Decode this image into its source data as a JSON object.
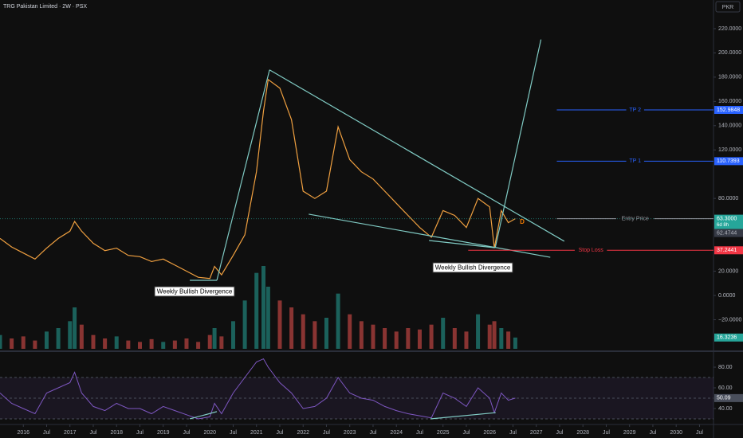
{
  "chart_data": {
    "type": "line",
    "title": "TRG Pakistan Limited · 2W · PSX",
    "currency": "PKR",
    "x": [
      2015.5,
      2015.75,
      2016,
      2016.25,
      2016.5,
      2016.75,
      2017,
      2017.1,
      2017.25,
      2017.5,
      2017.75,
      2018,
      2018.25,
      2018.5,
      2018.75,
      2019,
      2019.25,
      2019.5,
      2019.75,
      2020,
      2020.1,
      2020.25,
      2020.5,
      2020.75,
      2021,
      2021.15,
      2021.25,
      2021.5,
      2021.75,
      2022,
      2022.25,
      2022.5,
      2022.75,
      2023,
      2023.25,
      2023.5,
      2023.75,
      2024,
      2024.25,
      2024.5,
      2024.75,
      2025,
      2025.25,
      2025.5,
      2025.75,
      2026,
      2026.1,
      2026.25,
      2026.4,
      2026.55
    ],
    "xlim": [
      2015.5,
      2030.8
    ],
    "xticks": [
      2016,
      {
        "value": 2016.5,
        "label": "Jul"
      },
      2017,
      {
        "value": 2017.5,
        "label": "Jul"
      },
      2018,
      {
        "value": 2018.5,
        "label": "Jul"
      },
      2019,
      {
        "value": 2019.5,
        "label": "Jul"
      },
      2020,
      {
        "value": 2020.5,
        "label": "Jul"
      },
      2021,
      {
        "value": 2021.5,
        "label": "Jul"
      },
      2022,
      {
        "value": 2022.5,
        "label": "Jul"
      },
      2023,
      {
        "value": 2023.5,
        "label": "Jul"
      },
      2024,
      {
        "value": 2024.5,
        "label": "Jul"
      },
      2025,
      {
        "value": 2025.5,
        "label": "Jul"
      },
      2026,
      {
        "value": 2026.5,
        "label": "Jul"
      },
      2027,
      {
        "value": 2027.5,
        "label": "Jul"
      },
      2028,
      {
        "value": 2028.5,
        "label": "Jul"
      },
      2029,
      {
        "value": 2029.5,
        "label": "Jul"
      },
      2030,
      {
        "value": 2030.5,
        "label": "Jul"
      }
    ],
    "ylim": [
      -45.3,
      243.6
    ],
    "yticks": [
      {
        "value": 220,
        "label": "220.0000"
      },
      {
        "value": 200,
        "label": "200.0000"
      },
      {
        "value": 180,
        "label": "180.0000"
      },
      {
        "value": 160,
        "label": "160.0000"
      },
      {
        "value": 140,
        "label": "140.0000"
      },
      {
        "value": 120,
        "label": "120.0000"
      },
      {
        "value": 80,
        "label": "80.0000"
      },
      {
        "value": 20,
        "label": "20.0000"
      },
      {
        "value": 0,
        "label": "0.0000"
      },
      {
        "value": -20,
        "label": "−20.0000"
      }
    ],
    "volume_ylim": [
      0,
      150
    ],
    "rsi_ylim": [
      26.9,
      90.8
    ],
    "rsi_yticks": [
      {
        "value": 80,
        "label": "80.00"
      },
      {
        "value": 60,
        "label": "60.00"
      },
      {
        "value": 40,
        "label": "40.00"
      }
    ],
    "rsi_bands": [
      30,
      50,
      70
    ],
    "up_color": "#26a69a",
    "down_color": "#ef5350",
    "series": [
      {
        "color": "#f0a040",
        "values": [
          47,
          40,
          35,
          30,
          39,
          47,
          53,
          61,
          53,
          43,
          37,
          39,
          33,
          32,
          28,
          30,
          25,
          20,
          15,
          14,
          24,
          17,
          33,
          50,
          102,
          152,
          178,
          171,
          145,
          86,
          80,
          86,
          139,
          112,
          102,
          96,
          86,
          76,
          66,
          56,
          48,
          70,
          66,
          56,
          80,
          73,
          39,
          70,
          60,
          63.3
        ]
      },
      {
        "axis": "volume",
        "color": "#26a69a",
        "values": [
          20,
          15,
          18,
          12,
          25,
          30,
          40,
          60,
          35,
          20,
          15,
          18,
          12,
          10,
          14,
          10,
          12,
          15,
          10,
          20,
          30,
          18,
          40,
          70,
          110,
          120,
          90,
          70,
          60,
          50,
          40,
          45,
          80,
          50,
          40,
          35,
          30,
          25,
          30,
          28,
          35,
          45,
          30,
          25,
          50,
          35,
          40,
          30,
          25,
          16.3236
        ]
      },
      {
        "axis": "rsi",
        "color": "#7e57c2",
        "values": [
          55,
          45,
          40,
          35,
          55,
          60,
          65,
          75,
          55,
          42,
          38,
          45,
          40,
          40,
          35,
          42,
          38,
          34,
          30,
          32,
          45,
          35,
          55,
          70,
          85,
          88,
          80,
          65,
          55,
          40,
          42,
          50,
          70,
          55,
          50,
          48,
          42,
          38,
          35,
          33,
          31,
          55,
          50,
          42,
          60,
          50,
          36,
          55,
          48,
          50.09
        ]
      }
    ],
    "last_price_label": "63.3000",
    "countdown": "6d 8h",
    "prev_close_label": "62.4744",
    "levels": [
      {
        "text": "TP 2",
        "value": 152.9848,
        "from": 2027.44,
        "color": "#2962ff"
      },
      {
        "text": "TP 1",
        "value": 110.7393,
        "from": 2027.44,
        "color": "#2962ff"
      },
      {
        "text": "Entry Price",
        "value": 63.3,
        "from": 2027.44,
        "color": "#9598a1"
      },
      {
        "text": "Stop Loss",
        "value": 37.2441,
        "from": 2025.54,
        "color": "#f23645"
      }
    ],
    "trendline_color": "#80cbc4",
    "trendlines": [
      {
        "pane": "price",
        "x": [
          2020.15,
          2021.28
        ],
        "y": [
          12.5,
          186
        ]
      },
      {
        "pane": "price",
        "x": [
          2021.28,
          2027.6
        ],
        "y": [
          186,
          44.7
        ]
      },
      {
        "pane": "price",
        "x": [
          2022.12,
          2027.3
        ],
        "y": [
          67,
          31.5
        ]
      },
      {
        "pane": "price",
        "x": [
          2026.12,
          2027.1
        ],
        "y": [
          39.4,
          211
        ]
      },
      {
        "pane": "price",
        "x": [
          2019.57,
          2020.15
        ],
        "y": [
          12.5,
          12.5
        ]
      },
      {
        "pane": "price",
        "x": [
          2024.7,
          2026.1
        ],
        "y": [
          45.3,
          39.4
        ]
      },
      {
        "pane": "rsi",
        "x": [
          2019.57,
          2020.15
        ],
        "y": [
          30,
          37
        ]
      },
      {
        "pane": "rsi",
        "x": [
          2024.73,
          2026.13
        ],
        "y": [
          30,
          36
        ]
      }
    ],
    "annotations": [
      "Weekly Bullish Divergence",
      "Weekly Bullish Divergence",
      "D"
    ]
  }
}
